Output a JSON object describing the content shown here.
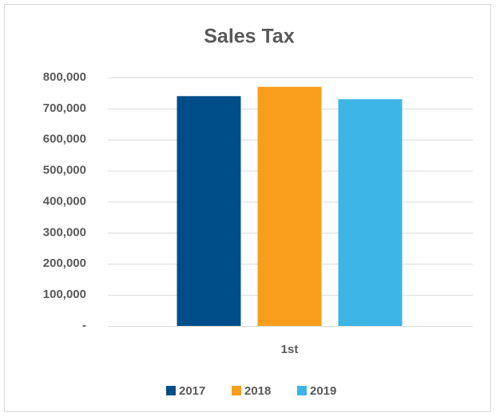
{
  "chart_data": {
    "type": "bar",
    "title": "Sales Tax",
    "categories": [
      "1st"
    ],
    "series": [
      {
        "name": "2017",
        "color": "#004e89",
        "values": [
          740000
        ]
      },
      {
        "name": "2018",
        "color": "#f99d1c",
        "values": [
          770000
        ]
      },
      {
        "name": "2019",
        "color": "#3db4e6",
        "values": [
          730000
        ]
      }
    ],
    "ylim": [
      0,
      800000
    ],
    "yticks": [
      {
        "value": 0,
        "label": "-"
      },
      {
        "value": 100000,
        "label": "100,000"
      },
      {
        "value": 200000,
        "label": "200,000"
      },
      {
        "value": 300000,
        "label": "300,000"
      },
      {
        "value": 400000,
        "label": "400,000"
      },
      {
        "value": 500000,
        "label": "500,000"
      },
      {
        "value": 600000,
        "label": "600,000"
      },
      {
        "value": 700000,
        "label": "700,000"
      },
      {
        "value": 800000,
        "label": "800,000"
      }
    ],
    "grid": true,
    "legend": "bottom"
  }
}
